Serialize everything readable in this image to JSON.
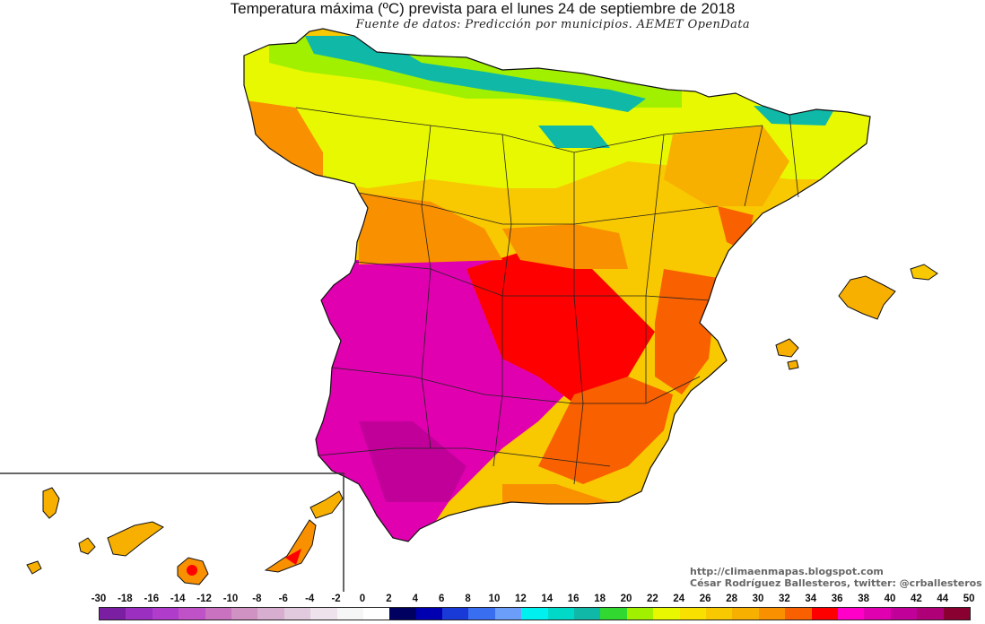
{
  "title": "Temperatura máxima (ºC) prevista para el lunes 24 de septiembre de 2018",
  "subtitle": "Fuente de datos: Predicción por municipios. AEMET OpenData",
  "credits": {
    "line1": "http://climaenmapas.blogspot.com",
    "line2": "César Rodríguez Ballesteros, twitter: @crballesteros"
  },
  "legend": {
    "ticks": [
      "-30",
      "-18",
      "-16",
      "-14",
      "-12",
      "-10",
      "-8",
      "-6",
      "-4",
      "-2",
      "0",
      "2",
      "4",
      "6",
      "8",
      "10",
      "12",
      "14",
      "16",
      "18",
      "20",
      "22",
      "24",
      "26",
      "28",
      "30",
      "32",
      "34",
      "36",
      "38",
      "40",
      "42",
      "44",
      "50"
    ],
    "colors": [
      "#7a1fa2",
      "#9b2fc0",
      "#b03ccc",
      "#c052c8",
      "#c872c0",
      "#cf92c2",
      "#d8aed0",
      "#e2cade",
      "#eee2ec",
      "#f6f6f6",
      "#ffffff",
      "#000060",
      "#0000b0",
      "#1a3ad8",
      "#3a6ef0",
      "#6a9ef8",
      "#00f0f0",
      "#00d8c8",
      "#10b8a8",
      "#30d830",
      "#a0f000",
      "#e8f800",
      "#f8e000",
      "#f8c800",
      "#f8b000",
      "#f89000",
      "#f86000",
      "#ff0000",
      "#ff00c8",
      "#e000b0",
      "#c00098",
      "#b00078",
      "#8a0030"
    ]
  },
  "map": {
    "region": "Península Ibérica, Islas Baleares e Islas Canarias",
    "zones": [
      {
        "area": "Cornisa cantábrica y Pirineo",
        "color": "#10b8a8",
        "range": "16-20"
      },
      {
        "area": "Meseta Norte",
        "color": "#e8f800",
        "range": "22-26"
      },
      {
        "area": "Valle del Ebro y Cataluña",
        "color": "#f8c800",
        "range": "26-30"
      },
      {
        "area": "Meseta Sur y Levante",
        "color": "#ff0000",
        "range": "32-34"
      },
      {
        "area": "Extremadura y Andalucía occidental",
        "color": "#e000b0",
        "range": "34-38"
      },
      {
        "area": "Canarias y Baleares",
        "color": "#f8b000",
        "range": "26-30"
      }
    ]
  }
}
